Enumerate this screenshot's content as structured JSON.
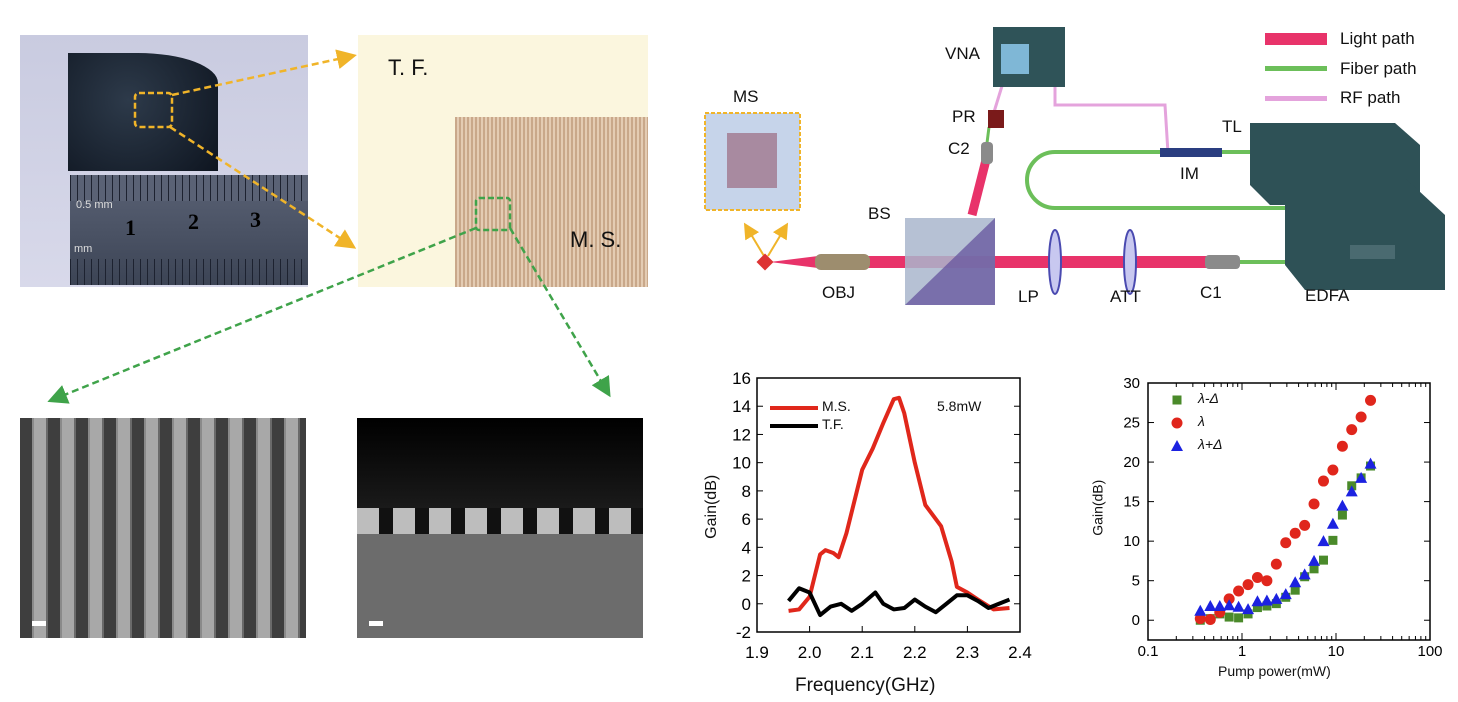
{
  "photo": {
    "ruler_unit_top": "0.5 mm",
    "ruler_unit_bottom": "mm",
    "ruler_numbers": [
      "1",
      "2",
      "3"
    ]
  },
  "microscope": {
    "tf_label": "T. F.",
    "ms_label": "M. S."
  },
  "setup": {
    "labels": {
      "ms": "MS",
      "vna": "VNA",
      "pr": "PR",
      "c2": "C2",
      "bs": "BS",
      "obj": "OBJ",
      "lp": "LP",
      "att": "ATT",
      "c1": "C1",
      "tl": "TL",
      "im": "IM",
      "edfa": "EDFA"
    },
    "legend": [
      {
        "label": "Light path",
        "color": "#e8336a"
      },
      {
        "label": "Fiber path",
        "color": "#6cbf5a"
      },
      {
        "label": "RF path",
        "color": "#e4a3dc"
      }
    ]
  },
  "chart_data": [
    {
      "type": "line",
      "title": "",
      "xlabel": "Frequency(GHz)",
      "ylabel": "Gain(dB)",
      "xlim": [
        1.9,
        2.4
      ],
      "ylim": [
        -2,
        16
      ],
      "xticks": [
        "1.9",
        "2.0",
        "2.1",
        "2.2",
        "2.3",
        "2.4"
      ],
      "yticks": [
        "-2",
        "0",
        "2",
        "4",
        "6",
        "8",
        "10",
        "12",
        "14",
        "16"
      ],
      "annotation": "5.8mW",
      "legend_placement": "top-left",
      "series": [
        {
          "name": "M.S.",
          "color": "#e0271b",
          "x": [
            1.96,
            1.98,
            2.0,
            2.01,
            2.02,
            2.03,
            2.045,
            2.055,
            2.07,
            2.09,
            2.1,
            2.12,
            2.14,
            2.16,
            2.17,
            2.18,
            2.2,
            2.22,
            2.25,
            2.27,
            2.28,
            2.3,
            2.32,
            2.35,
            2.38
          ],
          "y": [
            -0.5,
            -0.4,
            0.5,
            2,
            3.5,
            3.8,
            3.6,
            3.3,
            5,
            8,
            9.5,
            11,
            12.8,
            14.5,
            14.6,
            13.5,
            10,
            7,
            5.5,
            3,
            1.2,
            0.8,
            0.3,
            -0.4,
            -0.3
          ]
        },
        {
          "name": "T.F.",
          "color": "#000000",
          "x": [
            1.96,
            1.98,
            2.0,
            2.02,
            2.04,
            2.06,
            2.08,
            2.1,
            2.125,
            2.14,
            2.16,
            2.18,
            2.2,
            2.22,
            2.24,
            2.26,
            2.28,
            2.3,
            2.32,
            2.34,
            2.36,
            2.38
          ],
          "y": [
            0.2,
            1.1,
            0.8,
            -0.8,
            -0.2,
            0,
            -0.5,
            0,
            0.8,
            0,
            -0.4,
            -0.3,
            0.3,
            -0.2,
            -0.6,
            0,
            0.6,
            0.6,
            0.2,
            -0.3,
            0,
            0.3
          ]
        }
      ]
    },
    {
      "type": "scatter",
      "title": "",
      "xlabel": "Pump power(mW)",
      "ylabel": "Gain(dB)",
      "xscale": "log",
      "xlim": [
        0.1,
        100
      ],
      "ylim": [
        -2.5,
        30
      ],
      "xticks": [
        "0.1",
        "1",
        "10",
        "100"
      ],
      "yticks": [
        "0",
        "5",
        "10",
        "15",
        "20",
        "25",
        "30"
      ],
      "legend_placement": "top-left",
      "x": [
        0.36,
        0.46,
        0.58,
        0.73,
        0.92,
        1.16,
        1.46,
        1.84,
        2.32,
        2.92,
        3.68,
        4.64,
        5.84,
        7.36,
        9.27,
        11.7,
        14.7,
        18.5,
        23.3
      ],
      "series": [
        {
          "name": "λ-Δ",
          "marker": "square",
          "color": "#4a8a2a",
          "values": [
            0.0,
            0.2,
            0.8,
            0.4,
            0.3,
            0.8,
            1.6,
            1.8,
            2.1,
            2.9,
            3.8,
            5.5,
            6.5,
            7.6,
            10.1,
            13.3,
            17.0,
            18.0,
            19.5
          ]
        },
        {
          "name": "λ",
          "marker": "circle",
          "color": "#e0261c",
          "values": [
            0.2,
            0.1,
            1.0,
            2.7,
            3.7,
            4.5,
            5.4,
            5.0,
            7.1,
            9.8,
            11.0,
            12.0,
            14.7,
            17.6,
            19.0,
            22.0,
            24.1,
            25.7,
            27.8
          ]
        },
        {
          "name": "λ+Δ",
          "marker": "triangle",
          "color": "#1c22e0",
          "values": [
            1.2,
            1.8,
            1.8,
            1.9,
            1.7,
            1.4,
            2.4,
            2.5,
            2.7,
            3.3,
            4.8,
            5.8,
            7.5,
            10.0,
            12.2,
            14.5,
            16.3,
            18.0,
            19.8
          ]
        }
      ]
    }
  ]
}
